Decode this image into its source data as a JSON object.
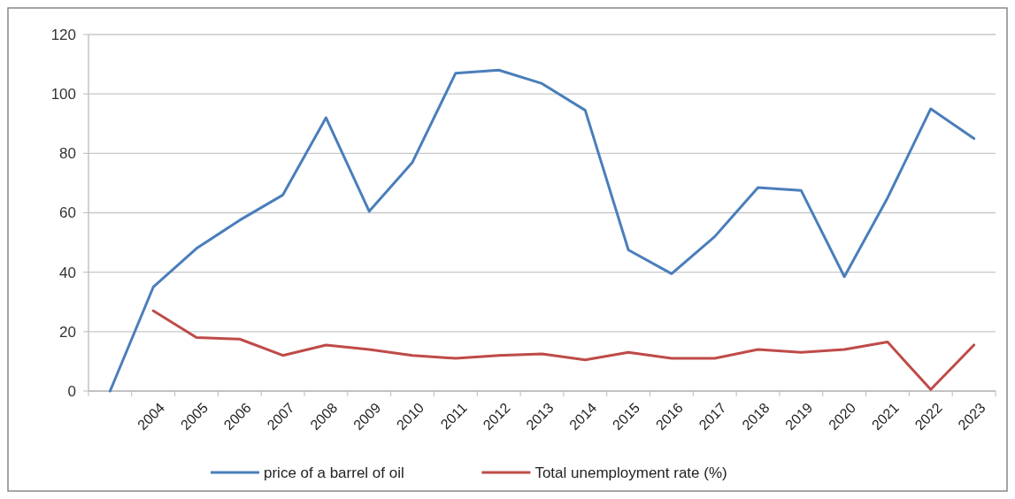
{
  "chart_data": {
    "type": "line",
    "categories": [
      null,
      "2004",
      "2005",
      "2006",
      "2007",
      "2008",
      "2009",
      "2010",
      "2011",
      "2012",
      "2013",
      "2014",
      "2015",
      "2016",
      "2017",
      "2018",
      "2019",
      "2020",
      "2021",
      "2022",
      "2023"
    ],
    "series": [
      {
        "name": "price of a barrel of oil",
        "color": "#4a7ebb",
        "values": [
          0,
          35,
          48,
          57.5,
          66,
          92,
          60.5,
          77,
          107,
          108,
          103.5,
          94.5,
          47.5,
          39.5,
          52,
          68.5,
          67.5,
          38.5,
          65,
          95,
          85
        ]
      },
      {
        "name": "Total unemployment rate (%)",
        "color": "#be4b48",
        "values": [
          null,
          27,
          18,
          17.5,
          12,
          15.5,
          14,
          12,
          11,
          12,
          12.5,
          10.5,
          13,
          11,
          11,
          14,
          13,
          14,
          16.5,
          0.5,
          15.5
        ]
      }
    ],
    "ylim": [
      0,
      120
    ],
    "yticks": [
      0,
      20,
      40,
      60,
      80,
      100,
      120
    ],
    "grid": "y",
    "legend": "bottom",
    "marker": "none",
    "line_style": "solid"
  }
}
